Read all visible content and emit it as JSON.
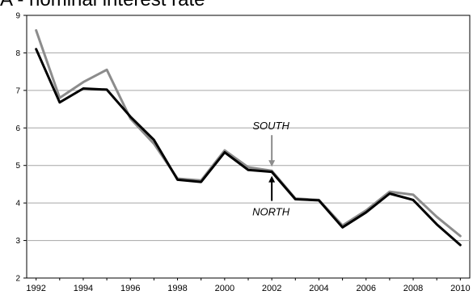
{
  "title": "A - nominal interest rate",
  "chart_data": {
    "type": "line",
    "title": "A - nominal interest rate",
    "xlabel": "",
    "ylabel": "",
    "xlim": [
      1991.6,
      2010.4
    ],
    "ylim": [
      2,
      9
    ],
    "yticks": [
      2,
      3,
      4,
      5,
      6,
      7,
      8,
      9
    ],
    "xticks": [
      1992,
      1994,
      1996,
      1998,
      2000,
      2002,
      2004,
      2006,
      2008,
      2010
    ],
    "grid": "horizontal",
    "legend": "none",
    "x": [
      1992,
      1993,
      1994,
      1995,
      1996,
      1997,
      1998,
      1999,
      2000,
      2001,
      2002,
      2003,
      2004,
      2005,
      2006,
      2007,
      2008,
      2009,
      2010
    ],
    "series": [
      {
        "name": "NORTH",
        "color": "#000000",
        "values": [
          8.1,
          6.68,
          7.05,
          7.02,
          6.3,
          5.68,
          4.62,
          4.56,
          5.35,
          4.88,
          4.83,
          4.1,
          4.07,
          3.35,
          3.75,
          4.25,
          4.08,
          3.43,
          2.88
        ]
      },
      {
        "name": "SOUTH",
        "color": "#8c8c8c",
        "values": [
          8.6,
          6.8,
          7.22,
          7.55,
          6.25,
          5.58,
          4.65,
          4.6,
          5.4,
          4.95,
          4.86,
          4.12,
          4.08,
          3.4,
          3.8,
          4.3,
          4.22,
          3.63,
          3.12
        ]
      }
    ],
    "annotations": [
      {
        "text": "SOUTH",
        "target_series": "SOUTH",
        "x": 2002,
        "y": 4.86,
        "arrow": "down"
      },
      {
        "text": "NORTH",
        "target_series": "NORTH",
        "x": 2002,
        "y": 4.83,
        "arrow": "up"
      }
    ]
  }
}
